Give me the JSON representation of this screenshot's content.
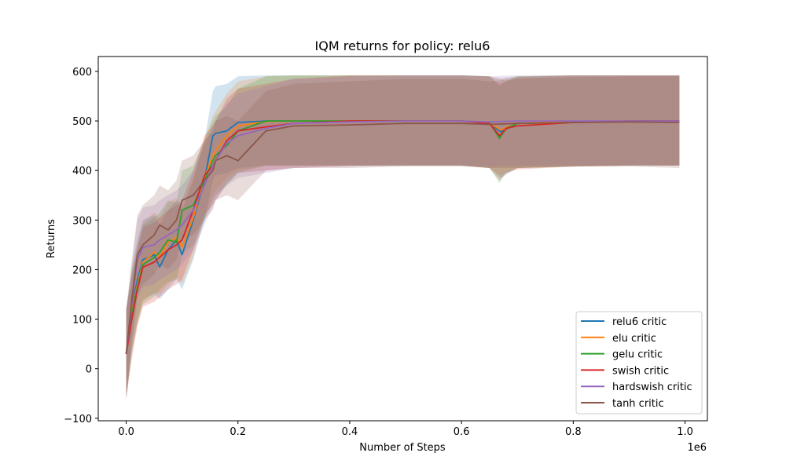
{
  "chart_data": {
    "type": "line",
    "title": "IQM returns for policy: relu6",
    "xlabel": "Number of Steps",
    "ylabel": "Returns",
    "x_offset_text": "1e6",
    "xlim": [
      -0.05,
      1.04
    ],
    "ylim": [
      -105,
      630
    ],
    "x_ticks": [
      0.0,
      0.2,
      0.4,
      0.6,
      0.8,
      1.0
    ],
    "x_tick_labels": [
      "0.0",
      "0.2",
      "0.4",
      "0.6",
      "0.8",
      "1.0"
    ],
    "y_ticks": [
      -100,
      0,
      100,
      200,
      300,
      400,
      500,
      600
    ],
    "y_tick_labels": [
      "−100",
      "0",
      "100",
      "200",
      "300",
      "400",
      "500",
      "600"
    ],
    "grid": false,
    "legend_position": "lower-right",
    "shaded_band": "interquartile range per series",
    "series": [
      {
        "name": "relu6 critic",
        "color": "#1f77b4",
        "x": [
          0,
          0.01,
          0.02,
          0.03,
          0.05,
          0.06,
          0.075,
          0.09,
          0.1,
          0.12,
          0.14,
          0.155,
          0.16,
          0.18,
          0.2,
          0.25,
          0.3,
          0.4,
          0.5,
          0.6,
          0.65,
          0.67,
          0.7,
          0.8,
          0.9,
          0.99
        ],
        "y": [
          30,
          120,
          180,
          220,
          230,
          205,
          240,
          260,
          230,
          300,
          380,
          470,
          475,
          480,
          497,
          500,
          500,
          500,
          500,
          500,
          495,
          478,
          495,
          498,
          500,
          500
        ],
        "lower": [
          -60,
          40,
          100,
          140,
          150,
          140,
          160,
          180,
          160,
          220,
          300,
          380,
          390,
          395,
          405,
          410,
          410,
          410,
          410,
          410,
          405,
          385,
          405,
          408,
          410,
          410
        ],
        "upper": [
          120,
          200,
          260,
          300,
          310,
          290,
          320,
          340,
          320,
          380,
          460,
          560,
          570,
          575,
          590,
          592,
          592,
          592,
          592,
          592,
          590,
          585,
          590,
          592,
          592,
          592
        ]
      },
      {
        "name": "elu critic",
        "color": "#ff7f0e",
        "x": [
          0,
          0.01,
          0.02,
          0.03,
          0.05,
          0.06,
          0.075,
          0.09,
          0.1,
          0.12,
          0.14,
          0.155,
          0.16,
          0.18,
          0.2,
          0.25,
          0.3,
          0.4,
          0.5,
          0.6,
          0.65,
          0.67,
          0.7,
          0.8,
          0.9,
          0.99
        ],
        "y": [
          30,
          115,
          170,
          215,
          235,
          225,
          255,
          265,
          245,
          305,
          385,
          430,
          440,
          470,
          490,
          499,
          500,
          500,
          500,
          500,
          496,
          482,
          495,
          499,
          500,
          500
        ],
        "lower": [
          -60,
          35,
          95,
          135,
          155,
          150,
          170,
          185,
          170,
          225,
          305,
          350,
          360,
          385,
          400,
          410,
          410,
          410,
          410,
          410,
          405,
          390,
          405,
          408,
          410,
          410
        ],
        "upper": [
          120,
          195,
          250,
          295,
          315,
          305,
          335,
          345,
          330,
          385,
          465,
          510,
          520,
          555,
          580,
          590,
          592,
          592,
          592,
          592,
          590,
          585,
          590,
          592,
          592,
          592
        ]
      },
      {
        "name": "gelu critic",
        "color": "#2ca02c",
        "x": [
          0,
          0.01,
          0.02,
          0.03,
          0.05,
          0.06,
          0.075,
          0.09,
          0.1,
          0.12,
          0.14,
          0.155,
          0.16,
          0.18,
          0.2,
          0.25,
          0.3,
          0.4,
          0.5,
          0.6,
          0.65,
          0.668,
          0.68,
          0.7,
          0.8,
          0.9,
          0.99
        ],
        "y": [
          30,
          110,
          165,
          210,
          225,
          235,
          260,
          255,
          320,
          330,
          380,
          420,
          430,
          450,
          480,
          500,
          500,
          500,
          500,
          500,
          497,
          465,
          485,
          495,
          497,
          500,
          500
        ],
        "lower": [
          -60,
          30,
          90,
          130,
          145,
          160,
          175,
          180,
          230,
          250,
          300,
          340,
          350,
          370,
          395,
          410,
          410,
          410,
          410,
          410,
          405,
          375,
          395,
          405,
          408,
          410,
          410
        ],
        "upper": [
          120,
          190,
          245,
          290,
          305,
          315,
          340,
          335,
          400,
          410,
          460,
          500,
          510,
          530,
          565,
          590,
          592,
          592,
          592,
          592,
          590,
          570,
          580,
          590,
          592,
          592,
          592
        ]
      },
      {
        "name": "swish critic",
        "color": "#d62728",
        "x": [
          0,
          0.01,
          0.02,
          0.03,
          0.05,
          0.06,
          0.075,
          0.09,
          0.1,
          0.12,
          0.14,
          0.155,
          0.16,
          0.18,
          0.2,
          0.25,
          0.3,
          0.4,
          0.5,
          0.6,
          0.65,
          0.668,
          0.68,
          0.7,
          0.8,
          0.9,
          0.99
        ],
        "y": [
          30,
          100,
          160,
          205,
          215,
          225,
          240,
          250,
          260,
          320,
          390,
          410,
          420,
          460,
          480,
          488,
          495,
          500,
          500,
          500,
          495,
          470,
          485,
          490,
          497,
          500,
          500
        ],
        "lower": [
          -60,
          20,
          85,
          125,
          135,
          145,
          160,
          170,
          180,
          240,
          310,
          330,
          340,
          375,
          395,
          400,
          405,
          410,
          410,
          410,
          405,
          380,
          395,
          402,
          408,
          410,
          410
        ],
        "upper": [
          120,
          180,
          240,
          285,
          295,
          305,
          320,
          330,
          340,
          400,
          470,
          490,
          500,
          545,
          565,
          575,
          585,
          592,
          592,
          592,
          590,
          575,
          580,
          588,
          592,
          592,
          592
        ]
      },
      {
        "name": "hardswish critic",
        "color": "#9467bd",
        "x": [
          0,
          0.01,
          0.02,
          0.03,
          0.05,
          0.06,
          0.075,
          0.09,
          0.1,
          0.12,
          0.14,
          0.155,
          0.16,
          0.18,
          0.2,
          0.25,
          0.3,
          0.4,
          0.5,
          0.6,
          0.65,
          0.7,
          0.8,
          0.9,
          0.99
        ],
        "y": [
          30,
          130,
          220,
          245,
          250,
          260,
          270,
          280,
          290,
          320,
          370,
          410,
          420,
          455,
          470,
          485,
          495,
          498,
          500,
          500,
          498,
          500,
          500,
          500,
          500
        ],
        "lower": [
          -60,
          50,
          140,
          165,
          170,
          180,
          190,
          200,
          210,
          240,
          290,
          330,
          340,
          370,
          385,
          395,
          405,
          408,
          410,
          410,
          408,
          410,
          410,
          410,
          410
        ],
        "upper": [
          120,
          210,
          300,
          325,
          330,
          340,
          350,
          360,
          370,
          400,
          450,
          490,
          500,
          535,
          555,
          570,
          585,
          590,
          592,
          592,
          590,
          592,
          592,
          592,
          592
        ]
      },
      {
        "name": "tanh critic",
        "color": "#8c564b",
        "x": [
          0,
          0.01,
          0.02,
          0.03,
          0.05,
          0.06,
          0.075,
          0.09,
          0.1,
          0.12,
          0.14,
          0.155,
          0.16,
          0.18,
          0.2,
          0.25,
          0.3,
          0.4,
          0.5,
          0.6,
          0.65,
          0.7,
          0.8,
          0.9,
          0.99
        ],
        "y": [
          30,
          140,
          230,
          250,
          270,
          290,
          280,
          300,
          340,
          350,
          380,
          400,
          420,
          430,
          420,
          480,
          490,
          492,
          495,
          495,
          493,
          495,
          497,
          498,
          497
        ],
        "lower": [
          -60,
          60,
          150,
          170,
          190,
          210,
          200,
          220,
          260,
          270,
          300,
          320,
          340,
          350,
          340,
          400,
          405,
          405,
          408,
          408,
          405,
          405,
          408,
          408,
          405
        ],
        "upper": [
          120,
          220,
          310,
          330,
          350,
          370,
          360,
          380,
          420,
          430,
          460,
          480,
          500,
          510,
          500,
          560,
          575,
          580,
          585,
          585,
          580,
          585,
          588,
          590,
          590
        ]
      }
    ]
  }
}
